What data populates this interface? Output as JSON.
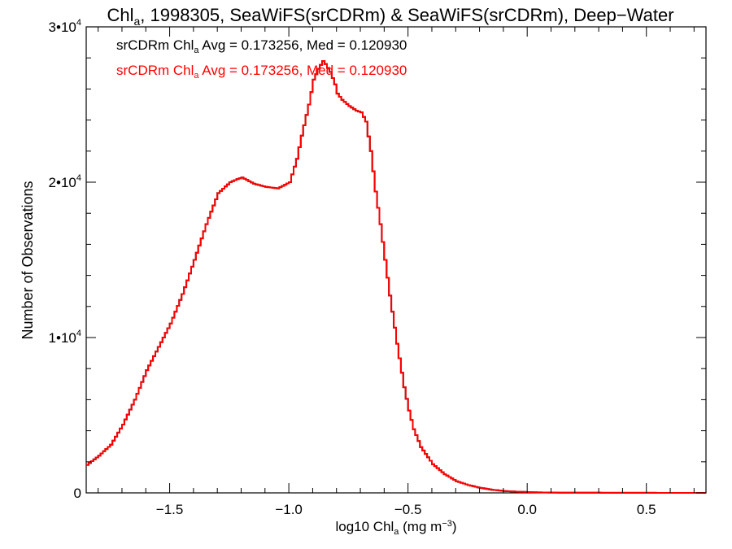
{
  "chart_data": {
    "type": "line",
    "title": "Chl_a, 1998305, SeaWiFS(srCDRm) & SeaWiFS(srCDRm), Deep-Water",
    "title_parts": {
      "base": "Chl",
      "sub": "a",
      "rest": ", 1998305, SeaWiFS(srCDRm) & SeaWiFS(srCDRm), Deep−Water"
    },
    "xlabel": "log10 Chl_a (mg m^-3)",
    "xlabel_parts": {
      "base": "log10 Chl",
      "sub": "a",
      "mid": " (mg m",
      "sup": "−3",
      "end": ")"
    },
    "ylabel": "Number of Observations",
    "xlim": [
      -1.85,
      0.75
    ],
    "ylim": [
      0,
      30000
    ],
    "x_ticks": [
      {
        "value": -1.5,
        "label": "−1.5"
      },
      {
        "value": -1.0,
        "label": "−1.0"
      },
      {
        "value": -0.5,
        "label": "−0.5"
      },
      {
        "value": 0.0,
        "label": "0.0"
      },
      {
        "value": 0.5,
        "label": "0.5"
      }
    ],
    "y_ticks": [
      {
        "value": 0,
        "mant": "0",
        "exp": ""
      },
      {
        "value": 10000,
        "mant": "1•10",
        "exp": "4"
      },
      {
        "value": 20000,
        "mant": "2•10",
        "exp": "4"
      },
      {
        "value": 30000,
        "mant": "3•10",
        "exp": "4"
      }
    ],
    "annotations": [
      {
        "prefix": "srCDRm Chl",
        "sub": "a",
        "suffix": " Avg = 0.173256, Med = 0.120930",
        "color": "#000000"
      },
      {
        "prefix": "srCDRm Chl",
        "sub": "a",
        "suffix": " Avg = 0.173256, Med = 0.120930",
        "color": "#ff0000"
      }
    ],
    "series": [
      {
        "color": "#000000",
        "x": [
          -1.85,
          -1.8,
          -1.75,
          -1.7,
          -1.65,
          -1.6,
          -1.55,
          -1.5,
          -1.45,
          -1.4,
          -1.35,
          -1.3,
          -1.25,
          -1.22,
          -1.2,
          -1.15,
          -1.1,
          -1.05,
          -1.0,
          -0.97,
          -0.95,
          -0.92,
          -0.9,
          -0.88,
          -0.86,
          -0.85,
          -0.83,
          -0.81,
          -0.8,
          -0.78,
          -0.75,
          -0.72,
          -0.7,
          -0.68,
          -0.66,
          -0.64,
          -0.62,
          -0.6,
          -0.58,
          -0.55,
          -0.52,
          -0.5,
          -0.48,
          -0.45,
          -0.4,
          -0.35,
          -0.3,
          -0.25,
          -0.2,
          -0.15,
          -0.1,
          -0.05,
          0.0,
          0.05,
          0.1,
          0.2,
          0.3,
          0.4,
          0.5,
          0.6,
          0.75
        ],
        "y": [
          1800,
          2400,
          3100,
          4400,
          6000,
          7900,
          9400,
          10900,
          12800,
          15000,
          17300,
          19300,
          20000,
          20200,
          20300,
          19900,
          19700,
          19600,
          20000,
          21500,
          23000,
          25000,
          26600,
          27300,
          27800,
          27600,
          27100,
          26300,
          25700,
          25300,
          24900,
          24600,
          24500,
          23900,
          22000,
          19400,
          17300,
          15000,
          12700,
          9600,
          6800,
          5300,
          4100,
          2950,
          1850,
          1200,
          750,
          500,
          320,
          200,
          120,
          80,
          50,
          30,
          20,
          12,
          8,
          5,
          3,
          2,
          1
        ]
      },
      {
        "color": "#ff0000",
        "x": [
          -1.85,
          -1.8,
          -1.75,
          -1.7,
          -1.65,
          -1.6,
          -1.55,
          -1.5,
          -1.45,
          -1.4,
          -1.35,
          -1.3,
          -1.25,
          -1.22,
          -1.2,
          -1.15,
          -1.1,
          -1.05,
          -1.0,
          -0.97,
          -0.95,
          -0.92,
          -0.9,
          -0.88,
          -0.86,
          -0.85,
          -0.83,
          -0.81,
          -0.8,
          -0.78,
          -0.75,
          -0.72,
          -0.7,
          -0.68,
          -0.66,
          -0.64,
          -0.62,
          -0.6,
          -0.58,
          -0.55,
          -0.52,
          -0.5,
          -0.48,
          -0.45,
          -0.4,
          -0.35,
          -0.3,
          -0.25,
          -0.2,
          -0.15,
          -0.1,
          -0.05,
          0.0,
          0.05,
          0.1,
          0.2,
          0.3,
          0.4,
          0.5,
          0.6,
          0.75
        ],
        "y": [
          1800,
          2400,
          3100,
          4400,
          6000,
          7900,
          9400,
          10900,
          12800,
          15000,
          17300,
          19300,
          20000,
          20200,
          20300,
          19900,
          19700,
          19600,
          20000,
          21500,
          23000,
          25000,
          26600,
          27300,
          27800,
          27600,
          27100,
          26300,
          25700,
          25300,
          24900,
          24600,
          24500,
          23900,
          22000,
          19400,
          17300,
          15000,
          12700,
          9600,
          6800,
          5300,
          4100,
          2950,
          1850,
          1200,
          750,
          500,
          320,
          200,
          120,
          80,
          50,
          30,
          20,
          12,
          8,
          5,
          3,
          2,
          1
        ]
      }
    ],
    "grid": false,
    "legend": "none"
  }
}
